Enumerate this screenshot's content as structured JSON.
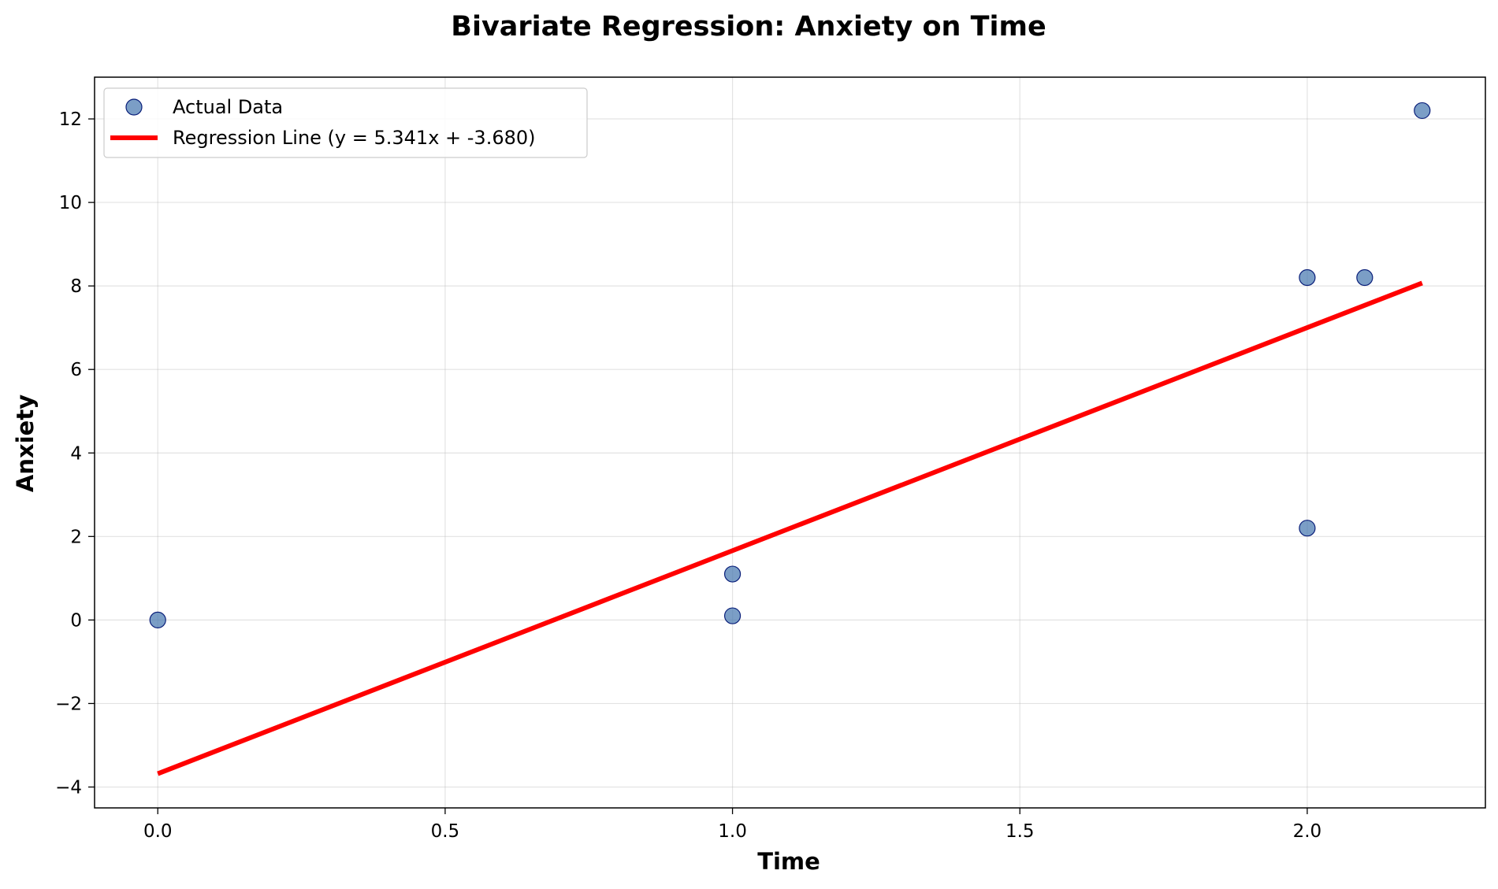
{
  "chart_data": {
    "type": "scatter",
    "title": "Bivariate Regression: Anxiety on Time",
    "xlabel": "Time",
    "ylabel": "Anxiety",
    "xlim": [
      -0.11,
      2.31
    ],
    "ylim": [
      -4.5,
      13.0
    ],
    "x_ticks": [
      0.0,
      0.5,
      1.0,
      1.5,
      2.0
    ],
    "x_tick_labels": [
      "0.0",
      "0.5",
      "1.0",
      "1.5",
      "2.0"
    ],
    "y_ticks": [
      -4,
      -2,
      0,
      2,
      4,
      6,
      8,
      10,
      12
    ],
    "y_tick_labels": [
      "−4",
      "−2",
      "0",
      "2",
      "4",
      "6",
      "8",
      "10",
      "12"
    ],
    "grid": true,
    "legend_position": "top-left",
    "series": [
      {
        "name": "Actual Data",
        "kind": "scatter",
        "color": "#4f7db3",
        "edge_color": "#0a1f7a",
        "points": [
          {
            "x": 0.0,
            "y": 0.0
          },
          {
            "x": 1.0,
            "y": 0.1
          },
          {
            "x": 1.0,
            "y": 1.1
          },
          {
            "x": 2.0,
            "y": 2.2
          },
          {
            "x": 2.0,
            "y": 8.2
          },
          {
            "x": 2.1,
            "y": 8.2
          },
          {
            "x": 2.2,
            "y": 12.2
          }
        ]
      },
      {
        "name": "Regression Line (y = 5.341x + -3.680)",
        "kind": "line",
        "color": "#ff0000",
        "slope": 5.341,
        "intercept": -3.68,
        "x_range": [
          0.0,
          2.2
        ]
      }
    ]
  }
}
